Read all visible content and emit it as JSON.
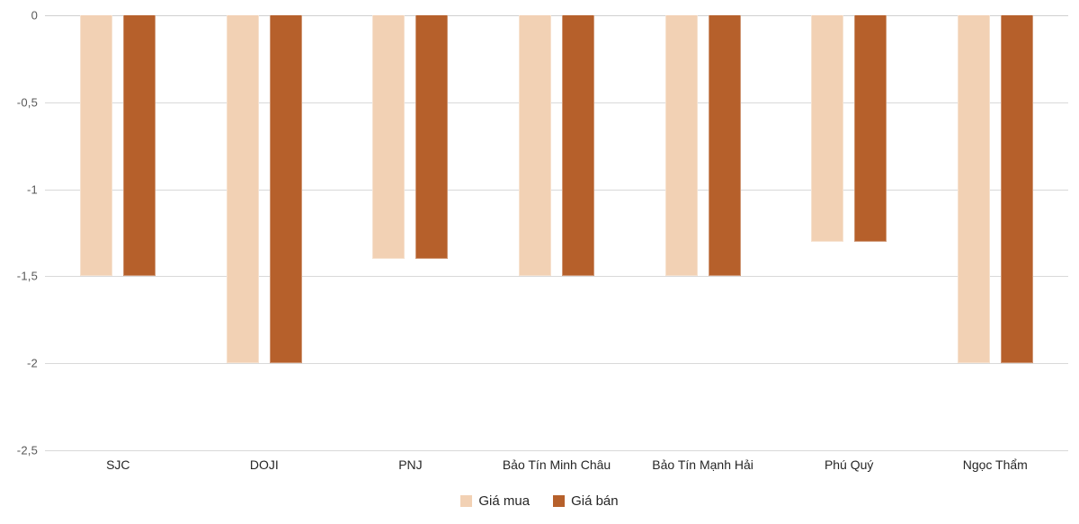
{
  "chart_data": {
    "type": "bar",
    "title": "",
    "xlabel": "",
    "ylabel": "",
    "categories": [
      "SJC",
      "DOJI",
      "PNJ",
      "Bảo Tín Minh Châu",
      "Bảo Tín Mạnh Hải",
      "Phú Quý",
      "Ngọc Thẩm"
    ],
    "series": [
      {
        "name": "Giá mua",
        "color": "#F2D1B4",
        "values": [
          -1.5,
          -2,
          -1.4,
          -1.5,
          -1.5,
          -1.3,
          -2
        ]
      },
      {
        "name": "Giá bán",
        "color": "#B6602B",
        "values": [
          -1.5,
          -2,
          -1.4,
          -1.5,
          -1.5,
          -1.3,
          -2
        ]
      }
    ],
    "ylim": [
      -2.5,
      0
    ],
    "yticks": {
      "values": [
        0,
        -0.5,
        -1,
        -1.5,
        -2,
        -2.5
      ],
      "labels": [
        "0",
        "-0,5",
        "-1",
        "-1,5",
        "-2",
        "-2,5"
      ]
    },
    "grid": true,
    "legend_position": "bottom",
    "gridline_color": "#D9D9D9",
    "background_color": "#FFFFFF"
  }
}
